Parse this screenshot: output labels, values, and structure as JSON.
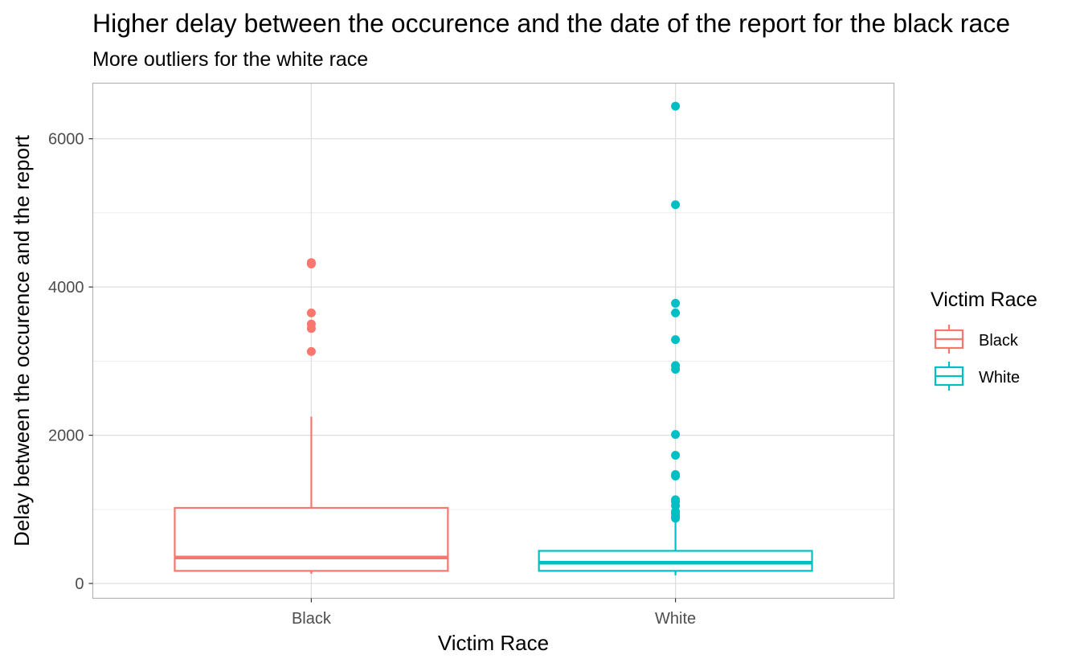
{
  "chart_data": {
    "type": "box",
    "title": "Higher delay between the occurence and the date of the report for the black race",
    "subtitle": "More outliers for the white race",
    "xlabel": "Victim Race",
    "ylabel": "Delay between the occurence and the report",
    "ylim": [
      -200,
      6750
    ],
    "yticks": [
      0,
      2000,
      4000,
      6000
    ],
    "grid": true,
    "legend": {
      "title": "Victim Race",
      "placement": "right",
      "entries": [
        "Black",
        "White"
      ]
    },
    "categories": [
      "Black",
      "White"
    ],
    "series": [
      {
        "name": "Black",
        "color": "#F8766D",
        "min": 130,
        "q1": 170,
        "median": 350,
        "q3": 1020,
        "max": 2250,
        "outliers": [
          3130,
          3440,
          3500,
          3650,
          4310,
          4330
        ]
      },
      {
        "name": "White",
        "color": "#00BFC4",
        "min": 110,
        "q1": 170,
        "median": 280,
        "q3": 440,
        "max": 850,
        "outliers": [
          880,
          900,
          940,
          970,
          1050,
          1100,
          1130,
          1450,
          1470,
          1730,
          2010,
          2890,
          2940,
          3290,
          3650,
          3780,
          5110,
          6440
        ]
      }
    ]
  }
}
